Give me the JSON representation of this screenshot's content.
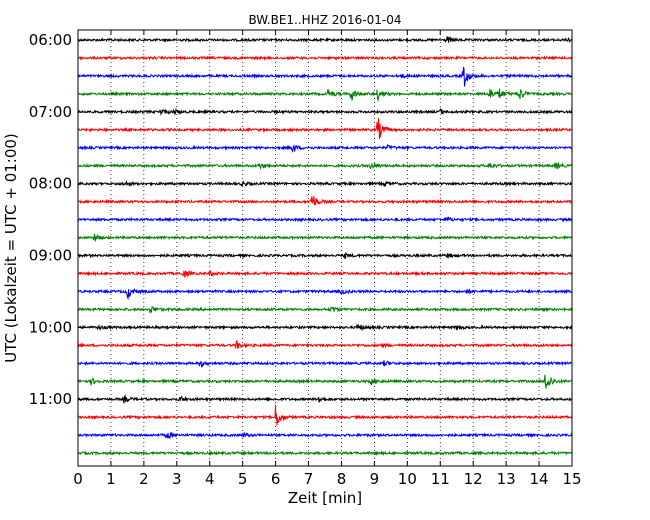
{
  "chart_data": {
    "type": "line",
    "title": "BW.BE1..HHZ 2016-01-04",
    "xlabel": "Zeit  [min]",
    "ylabel": "UTC (Lokalzeit = UTC + 01:00)",
    "xlim": [
      0,
      15
    ],
    "x_ticks": [
      "0",
      "1",
      "2",
      "3",
      "4",
      "5",
      "6",
      "7",
      "8",
      "9",
      "10",
      "11",
      "12",
      "13",
      "14",
      "15"
    ],
    "y_tick_labels": [
      "06:00",
      "07:00",
      "08:00",
      "09:00",
      "10:00",
      "11:00"
    ],
    "grid": "vertical dotted",
    "trace_interval_min": 15,
    "trace_colors": [
      "#000000",
      "#ff0000",
      "#0000ff",
      "#008000"
    ],
    "traces": [
      {
        "start": "06:00",
        "events": [
          {
            "t": 11.2,
            "amp": 0.25
          },
          {
            "t": 14.9,
            "amp": 0.2
          }
        ]
      },
      {
        "start": "06:15",
        "events": []
      },
      {
        "start": "06:30",
        "events": [
          {
            "t": 11.7,
            "amp": 1.0
          },
          {
            "t": 9.8,
            "amp": 0.15
          }
        ]
      },
      {
        "start": "06:45",
        "events": [
          {
            "t": 7.6,
            "amp": 0.35
          },
          {
            "t": 8.3,
            "amp": 0.55
          },
          {
            "t": 9.1,
            "amp": 0.45
          },
          {
            "t": 12.5,
            "amp": 0.45
          },
          {
            "t": 12.8,
            "amp": 0.35
          },
          {
            "t": 13.4,
            "amp": 0.5
          }
        ]
      },
      {
        "start": "07:00",
        "events": [
          {
            "t": 2.5,
            "amp": 0.2
          },
          {
            "t": 2.9,
            "amp": 0.2
          },
          {
            "t": 11.0,
            "amp": 0.2
          }
        ]
      },
      {
        "start": "07:15",
        "events": [
          {
            "t": 9.1,
            "amp": 1.0
          }
        ]
      },
      {
        "start": "07:30",
        "events": [
          {
            "t": 6.5,
            "amp": 0.35
          },
          {
            "t": 9.4,
            "amp": 0.15
          }
        ]
      },
      {
        "start": "07:45",
        "events": [
          {
            "t": 5.5,
            "amp": 0.2
          },
          {
            "t": 8.9,
            "amp": 0.3
          },
          {
            "t": 12.5,
            "amp": 0.25
          },
          {
            "t": 14.5,
            "amp": 0.25
          }
        ]
      },
      {
        "start": "08:00",
        "events": [
          {
            "t": 1.4,
            "amp": 0.2
          },
          {
            "t": 5.0,
            "amp": 0.2
          },
          {
            "t": 9.3,
            "amp": 0.2
          }
        ]
      },
      {
        "start": "08:15",
        "events": [
          {
            "t": 7.1,
            "amp": 0.7
          }
        ]
      },
      {
        "start": "08:30",
        "events": [
          {
            "t": 11.2,
            "amp": 0.15
          }
        ]
      },
      {
        "start": "08:45",
        "events": [
          {
            "t": 0.5,
            "amp": 0.3
          }
        ]
      },
      {
        "start": "09:00",
        "events": [
          {
            "t": 8.1,
            "amp": 0.2
          },
          {
            "t": 11.2,
            "amp": 0.2
          }
        ]
      },
      {
        "start": "09:15",
        "events": [
          {
            "t": 3.2,
            "amp": 0.35
          },
          {
            "t": 4.0,
            "amp": 0.15
          }
        ]
      },
      {
        "start": "09:30",
        "events": [
          {
            "t": 1.5,
            "amp": 0.55
          },
          {
            "t": 8.0,
            "amp": 0.2
          },
          {
            "t": 11.8,
            "amp": 0.15
          }
        ]
      },
      {
        "start": "09:45",
        "events": [
          {
            "t": 2.2,
            "amp": 0.3
          },
          {
            "t": 7.7,
            "amp": 0.25
          }
        ]
      },
      {
        "start": "10:00",
        "events": [
          {
            "t": 0.6,
            "amp": 0.2
          },
          {
            "t": 8.5,
            "amp": 0.3
          },
          {
            "t": 11.5,
            "amp": 0.15
          }
        ]
      },
      {
        "start": "10:15",
        "events": [
          {
            "t": 4.8,
            "amp": 0.35
          },
          {
            "t": 9.2,
            "amp": 0.15
          }
        ]
      },
      {
        "start": "10:30",
        "events": [
          {
            "t": 3.7,
            "amp": 0.25
          },
          {
            "t": 9.3,
            "amp": 0.2
          }
        ]
      },
      {
        "start": "10:45",
        "events": [
          {
            "t": 0.4,
            "amp": 0.25
          },
          {
            "t": 8.9,
            "amp": 0.25
          },
          {
            "t": 14.2,
            "amp": 1.0
          }
        ]
      },
      {
        "start": "11:00",
        "events": [
          {
            "t": 1.4,
            "amp": 0.25
          },
          {
            "t": 3.1,
            "amp": 0.2
          },
          {
            "t": 7.3,
            "amp": 0.3
          }
        ]
      },
      {
        "start": "11:15",
        "events": [
          {
            "t": 6.0,
            "amp": 1.0
          }
        ]
      },
      {
        "start": "11:30",
        "events": [
          {
            "t": 2.7,
            "amp": 0.35
          },
          {
            "t": 5.0,
            "amp": 0.15
          }
        ]
      },
      {
        "start": "11:45",
        "events": []
      }
    ]
  }
}
